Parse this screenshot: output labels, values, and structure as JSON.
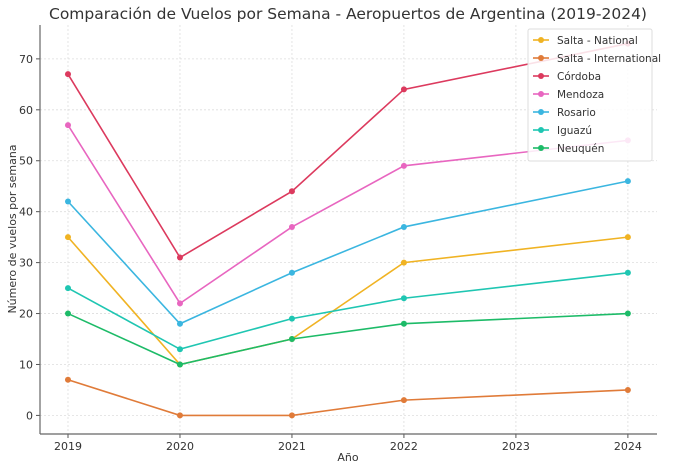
{
  "chart_data": {
    "type": "line",
    "title": "Comparación de Vuelos por Semana - Aeropuertos de Argentina (2019-2024)",
    "xlabel": "Año",
    "ylabel": "Número de vuelos por semana",
    "x": [
      2019,
      2020,
      2021,
      2022,
      2024
    ],
    "xticks": [
      2019,
      2020,
      2021,
      2022,
      2023,
      2024
    ],
    "yticks": [
      0,
      10,
      20,
      30,
      40,
      50,
      60,
      70
    ],
    "xlim": [
      2018.75,
      2024.26
    ],
    "ylim": [
      -3.65,
      76.65
    ],
    "grid": true,
    "legend_position": "top-right",
    "series": [
      {
        "name": "Salta - National",
        "color": "#f0b323",
        "values": [
          35,
          10,
          15,
          30,
          35
        ]
      },
      {
        "name": "Salta - International",
        "color": "#e07b39",
        "values": [
          7,
          0,
          0,
          3,
          5
        ]
      },
      {
        "name": "Córdoba",
        "color": "#dc3a5e",
        "values": [
          67,
          31,
          44,
          64,
          73
        ]
      },
      {
        "name": "Mendoza",
        "color": "#e866c0",
        "values": [
          57,
          22,
          37,
          49,
          54
        ]
      },
      {
        "name": "Rosario",
        "color": "#3bb6e0",
        "values": [
          42,
          18,
          28,
          37,
          46
        ]
      },
      {
        "name": "Iguazú",
        "color": "#1fc6b2",
        "values": [
          25,
          13,
          19,
          23,
          28
        ]
      },
      {
        "name": "Neuquén",
        "color": "#1dbb68",
        "values": [
          20,
          10,
          15,
          18,
          20
        ]
      }
    ]
  }
}
